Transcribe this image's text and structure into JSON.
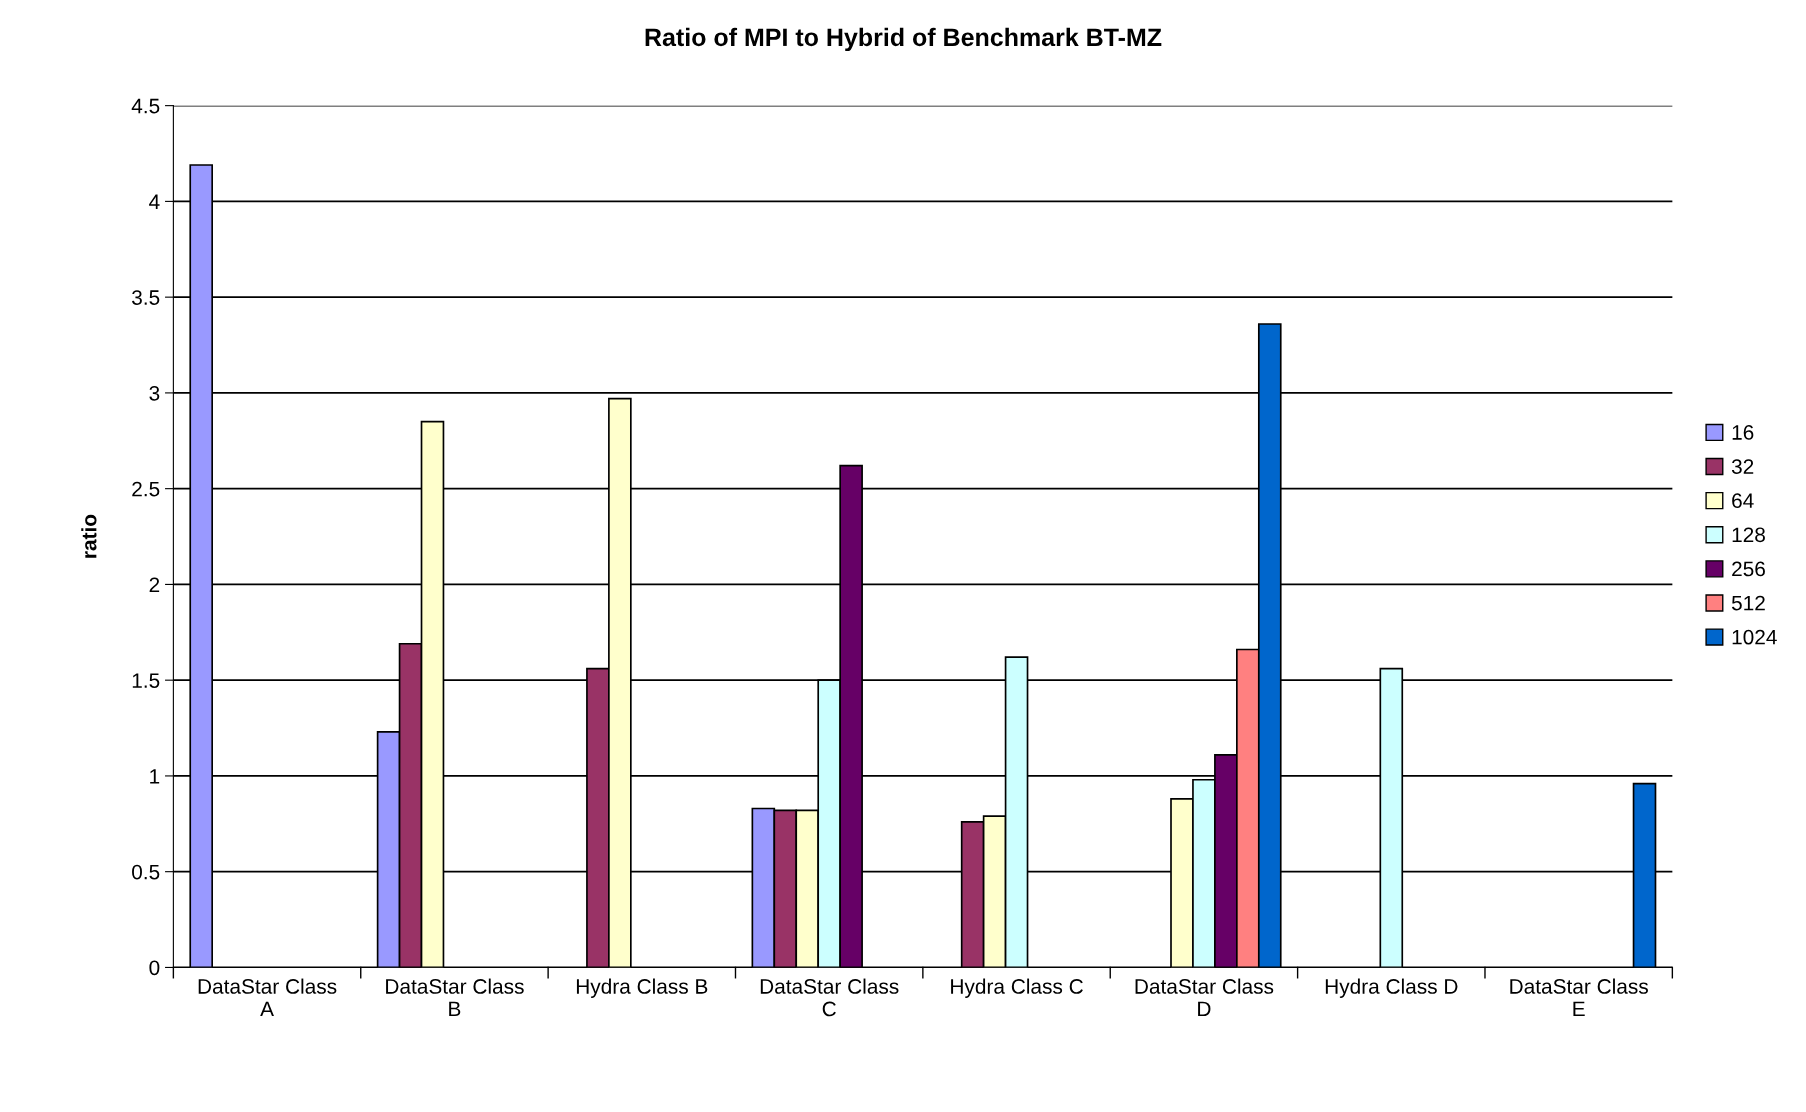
{
  "chart_data": {
    "type": "bar",
    "title": "Ratio of MPI to Hybrid of Benchmark BT-MZ",
    "ylabel": "ratio",
    "categories": [
      "DataStar Class A",
      "DataStar Class B",
      "Hydra Class B",
      "DataStar Class C",
      "Hydra Class C",
      "DataStar Class D",
      "Hydra Class D",
      "DataStar Class E"
    ],
    "series": [
      {
        "name": "16",
        "color": "#9999ff",
        "values": [
          4.19,
          1.23,
          null,
          0.83,
          null,
          null,
          null,
          null
        ]
      },
      {
        "name": "32",
        "color": "#993366",
        "values": [
          null,
          1.69,
          1.56,
          0.82,
          0.76,
          null,
          null,
          null
        ]
      },
      {
        "name": "64",
        "color": "#ffffcc",
        "values": [
          null,
          2.85,
          2.97,
          0.82,
          0.79,
          0.88,
          null,
          null
        ]
      },
      {
        "name": "128",
        "color": "#ccffff",
        "values": [
          null,
          null,
          null,
          1.5,
          1.62,
          0.98,
          1.56,
          null
        ]
      },
      {
        "name": "256",
        "color": "#660066",
        "values": [
          null,
          null,
          null,
          2.62,
          null,
          1.11,
          null,
          null
        ]
      },
      {
        "name": "512",
        "color": "#ff8080",
        "values": [
          null,
          null,
          null,
          null,
          null,
          1.66,
          null,
          null
        ]
      },
      {
        "name": "1024",
        "color": "#0066cc",
        "values": [
          null,
          null,
          null,
          null,
          null,
          3.36,
          null,
          0.96
        ]
      }
    ],
    "ylim": [
      0,
      4.5
    ],
    "yticks": [
      0,
      0.5,
      1,
      1.5,
      2,
      2.5,
      3,
      3.5,
      4,
      4.5
    ],
    "grid": "y",
    "legend": "right"
  }
}
